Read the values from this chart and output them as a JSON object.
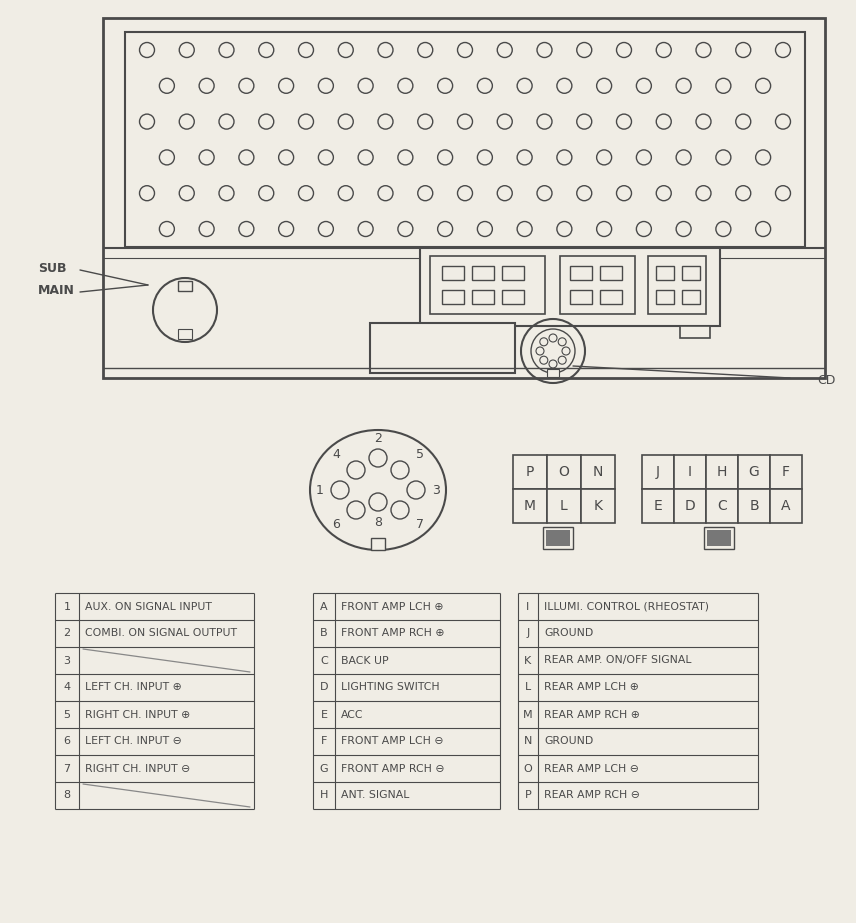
{
  "bg_color": "#f0ede5",
  "line_color": "#4a4a4a",
  "sub_label": "SUB",
  "main_label": "MAIN",
  "cd_label": "CD",
  "connector_labels_row1": [
    "P",
    "O",
    "N"
  ],
  "connector_labels_row2": [
    "M",
    "L",
    "K"
  ],
  "connector2_labels_row1": [
    "J",
    "I",
    "H",
    "G",
    "F"
  ],
  "connector2_labels_row2": [
    "E",
    "D",
    "C",
    "B",
    "A"
  ],
  "table1": [
    [
      "1",
      "AUX. ON SIGNAL INPUT"
    ],
    [
      "2",
      "COMBI. ON SIGNAL OUTPUT"
    ],
    [
      "3",
      ""
    ],
    [
      "4",
      "LEFT CH. INPUT ⊕"
    ],
    [
      "5",
      "RIGHT CH. INPUT ⊕"
    ],
    [
      "6",
      "LEFT CH. INPUT ⊖"
    ],
    [
      "7",
      "RIGHT CH. INPUT ⊖"
    ],
    [
      "8",
      ""
    ]
  ],
  "table2": [
    [
      "A",
      "FRONT AMP LCH ⊕"
    ],
    [
      "B",
      "FRONT AMP RCH ⊕"
    ],
    [
      "C",
      "BACK UP"
    ],
    [
      "D",
      "LIGHTING SWITCH"
    ],
    [
      "E",
      "ACC"
    ],
    [
      "F",
      "FRONT AMP LCH ⊖"
    ],
    [
      "G",
      "FRONT AMP RCH ⊖"
    ],
    [
      "H",
      "ANT. SIGNAL"
    ]
  ],
  "table3": [
    [
      "I",
      "ILLUMI. CONTROL (RHEOSTAT)"
    ],
    [
      "J",
      "GROUND"
    ],
    [
      "K",
      "REAR AMP. ON/OFF SIGNAL"
    ],
    [
      "L",
      "REAR AMP LCH ⊕"
    ],
    [
      "M",
      "REAR AMP RCH ⊕"
    ],
    [
      "N",
      "GROUND"
    ],
    [
      "O",
      "REAR AMP LCH ⊖"
    ],
    [
      "P",
      "REAR AMP RCH ⊖"
    ]
  ]
}
